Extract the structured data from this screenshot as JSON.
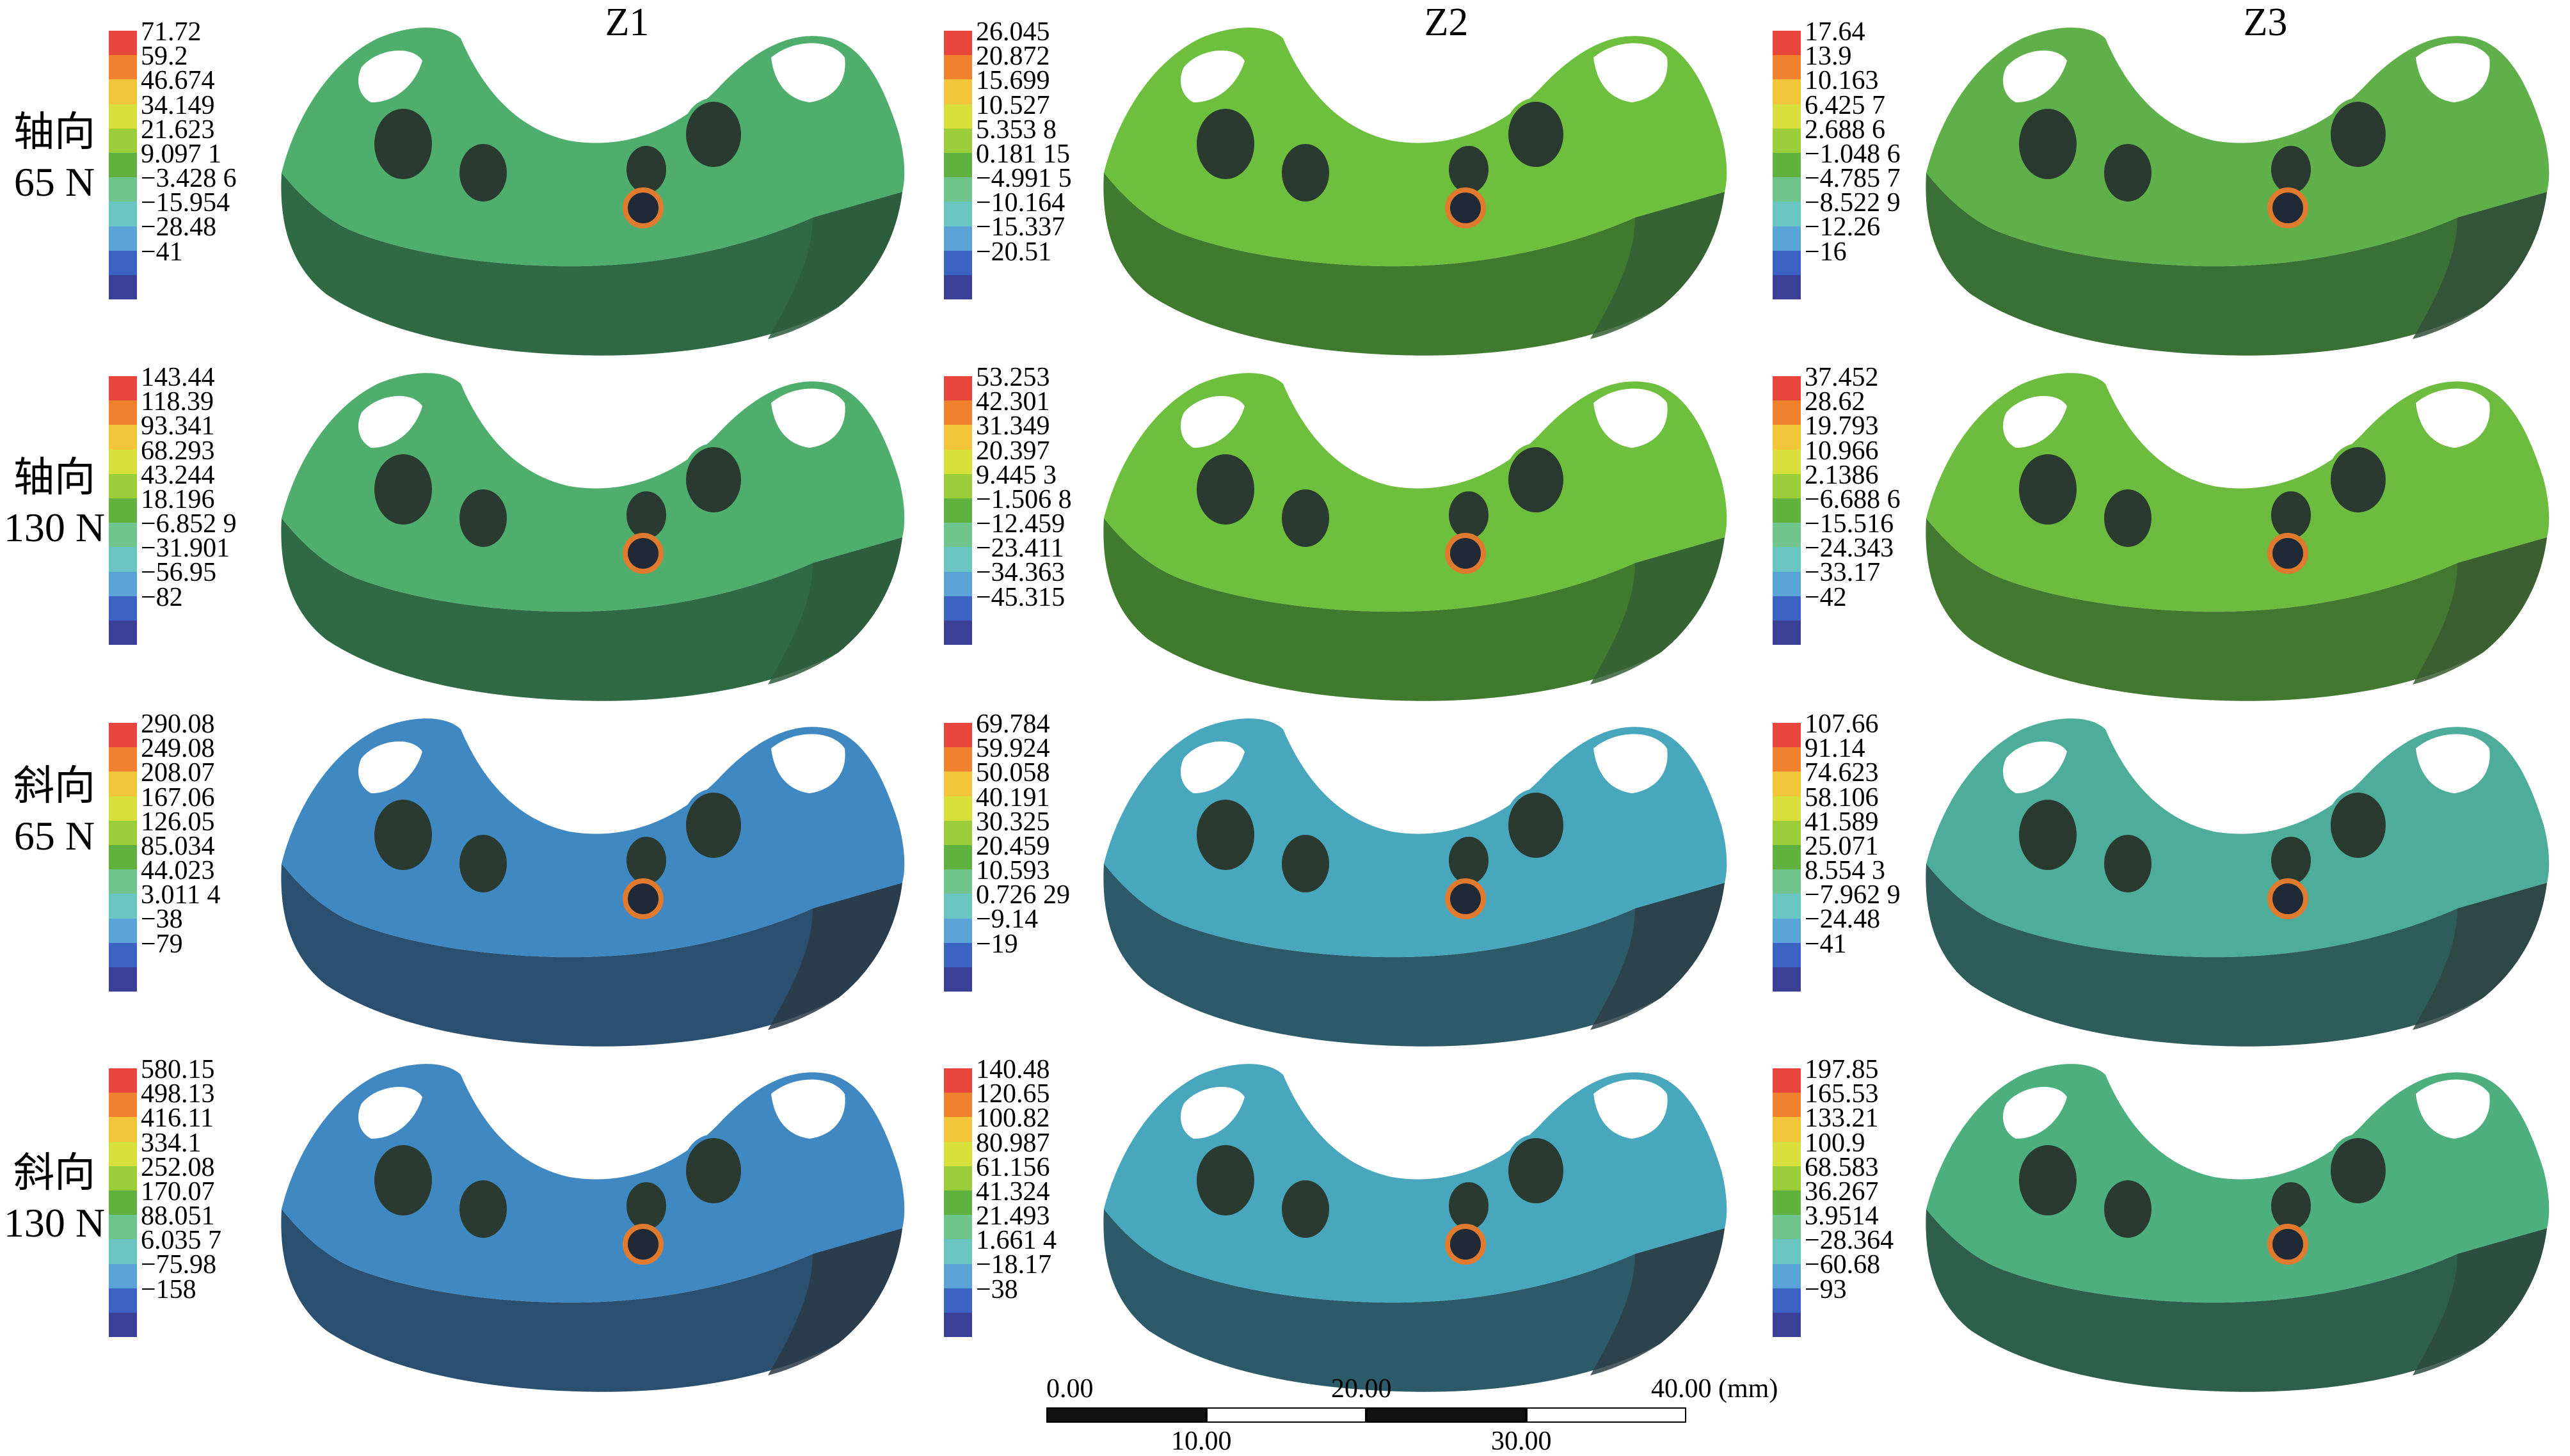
{
  "columns": [
    "Z1",
    "Z2",
    "Z3"
  ],
  "rows": [
    {
      "line1": "轴向",
      "line2": "65 N"
    },
    {
      "line1": "轴向",
      "line2": "130 N"
    },
    {
      "line1": "斜向",
      "line2": "65 N"
    },
    {
      "line1": "斜向",
      "line2": "130 N"
    }
  ],
  "legend_colors": [
    "#e8453c",
    "#f0812f",
    "#f2c53a",
    "#d8e13b",
    "#9ccd3b",
    "#5fb23f",
    "#6fc58b",
    "#6bc6c3",
    "#5aa3d6",
    "#3c63c2",
    "#3b3f95"
  ],
  "legends": [
    [
      "71.72",
      "59.2",
      "46.674",
      "34.149",
      "21.623",
      "9.097 1",
      "−3.428 6",
      "−15.954",
      "−28.48",
      "−41"
    ],
    [
      "26.045",
      "20.872",
      "15.699",
      "10.527",
      "5.353 8",
      "0.181 15",
      "−4.991 5",
      "−10.164",
      "−15.337",
      "−20.51"
    ],
    [
      "17.64",
      "13.9",
      "10.163",
      "6.425 7",
      "2.688 6",
      "−1.048 6",
      "−4.785 7",
      "−8.522 9",
      "−12.26",
      "−16"
    ],
    [
      "143.44",
      "118.39",
      "93.341",
      "68.293",
      "43.244",
      "18.196",
      "−6.852 9",
      "−31.901",
      "−56.95",
      "−82"
    ],
    [
      "53.253",
      "42.301",
      "31.349",
      "20.397",
      "9.445 3",
      "−1.506 8",
      "−12.459",
      "−23.411",
      "−34.363",
      "−45.315"
    ],
    [
      "37.452",
      "28.62",
      "19.793",
      "10.966",
      "2.1386",
      "−6.688 6",
      "−15.516",
      "−24.343",
      "−33.17",
      "−42"
    ],
    [
      "290.08",
      "249.08",
      "208.07",
      "167.06",
      "126.05",
      "85.034",
      "44.023",
      "3.011 4",
      "−38",
      "−79"
    ],
    [
      "69.784",
      "59.924",
      "50.058",
      "40.191",
      "30.325",
      "20.459",
      "10.593",
      "0.726 29",
      "−9.14",
      "−19"
    ],
    [
      "107.66",
      "91.14",
      "74.623",
      "58.106",
      "41.589",
      "25.071",
      "8.554 3",
      "−7.962 9",
      "−24.48",
      "−41"
    ],
    [
      "580.15",
      "498.13",
      "416.11",
      "334.1",
      "252.08",
      "170.07",
      "88.051",
      "6.035 7",
      "−75.98",
      "−158"
    ],
    [
      "140.48",
      "120.65",
      "100.82",
      "80.987",
      "61.156",
      "41.324",
      "21.493",
      "1.661 4",
      "−18.17",
      "−38"
    ],
    [
      "197.85",
      "165.53",
      "133.21",
      "100.9",
      "68.583",
      "36.267",
      "3.9514",
      "−28.364",
      "−60.68",
      "−93"
    ]
  ],
  "implant_colors": [
    {
      "top": "#4fae6e",
      "front": "#2f6a45",
      "side": "#2e5a3c"
    },
    {
      "top": "#6fbf3f",
      "front": "#3f7a2e",
      "side": "#355f35"
    },
    {
      "top": "#5fb04a",
      "front": "#3a7035",
      "side": "#334f38"
    },
    {
      "top": "#4fae6e",
      "front": "#2f6a45",
      "side": "#2e5a3c"
    },
    {
      "top": "#6fbf3f",
      "front": "#3f7a2e",
      "side": "#355f35"
    },
    {
      "top": "#6dbb3f",
      "front": "#42782f",
      "side": "#3a5a30"
    },
    {
      "top": "#3f88c2",
      "front": "#2b4f6e",
      "side": "#2a3a48"
    },
    {
      "top": "#48a7bd",
      "front": "#2c5a68",
      "side": "#2d4046"
    },
    {
      "top": "#4dac9a",
      "front": "#2e5c5a",
      "side": "#2e4442"
    },
    {
      "top": "#3f88c2",
      "front": "#2b4f6e",
      "side": "#2a3a48"
    },
    {
      "top": "#48a7bd",
      "front": "#2c5a68",
      "side": "#2d4046"
    },
    {
      "top": "#4dae7e",
      "front": "#2e5f4c",
      "side": "#2e4a3f"
    }
  ],
  "scale_bar": {
    "top_labels": [
      "0.00",
      "20.00",
      "40.00 (mm)"
    ],
    "bottom_labels": [
      "10.00",
      "30.00"
    ]
  }
}
